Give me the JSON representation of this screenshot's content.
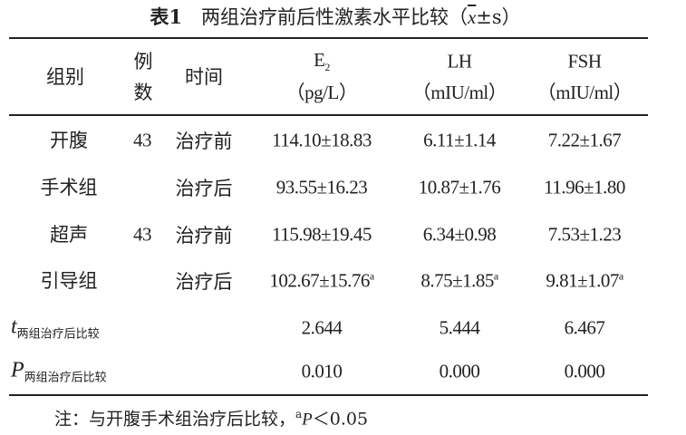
{
  "title": {
    "label": "表1",
    "text": "两组治疗前后性激素水平比较（",
    "stat_mean": "x",
    "stat_rest": "±s）"
  },
  "table": {
    "header": [
      {
        "text": "组别"
      },
      {
        "lines": [
          "例",
          "数"
        ]
      },
      {
        "text": "时间"
      },
      {
        "name": "E",
        "sub": "2",
        "unit": "（pg/L）"
      },
      {
        "name": "LH",
        "unit": "（mIU/ml）"
      },
      {
        "name": "FSH",
        "unit": "（mIU/ml）"
      }
    ],
    "groups": [
      {
        "name_lines": [
          "开腹",
          "手术组"
        ],
        "n": 43,
        "rows": [
          {
            "time": "治疗前",
            "cells": [
              {
                "text": "114.10±18.83"
              },
              {
                "text": "6.11±1.14"
              },
              {
                "text": "7.22±1.67"
              }
            ]
          },
          {
            "time": "治疗后",
            "cells": [
              {
                "text": "93.55±16.23"
              },
              {
                "text": "10.87±1.76"
              },
              {
                "text": "11.96±1.80"
              }
            ]
          }
        ]
      },
      {
        "name_lines": [
          "超声",
          "引导组"
        ],
        "n": 43,
        "rows": [
          {
            "time": "治疗前",
            "cells": [
              {
                "text": "115.98±19.45"
              },
              {
                "text": "6.34±0.98"
              },
              {
                "text": "7.53±1.23"
              }
            ]
          },
          {
            "time": "治疗后",
            "cells": [
              {
                "text": "102.67±15.76",
                "sup": "a"
              },
              {
                "text": "8.75±1.85",
                "sup": "a"
              },
              {
                "text": "9.81±1.07",
                "sup": "a"
              }
            ]
          }
        ]
      }
    ],
    "stats": [
      {
        "symbol": "t",
        "sub": "两组治疗后比较",
        "values": [
          "2.644",
          "5.444",
          "6.467"
        ]
      },
      {
        "symbol": "P",
        "sub": "两组治疗后比较",
        "values": [
          "0.010",
          "0.000",
          "0.000"
        ]
      }
    ]
  },
  "note": {
    "prefix": "注：与开腹手术组治疗后比较，",
    "sup": "a",
    "symbol": "P",
    "rest": "＜0.05"
  }
}
